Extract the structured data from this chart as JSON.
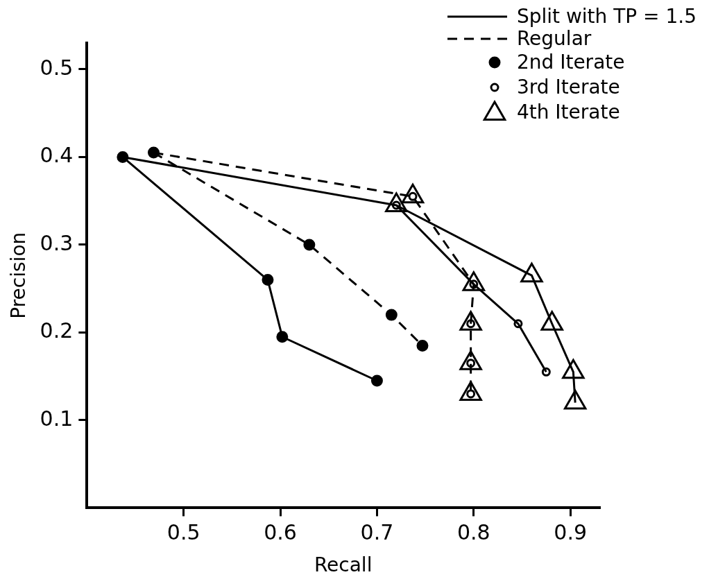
{
  "chart_data": {
    "type": "line",
    "xlabel": "Recall",
    "ylabel": "Precision",
    "xlim": [
      0.4,
      0.93
    ],
    "xticks": [
      0.5,
      0.6,
      0.7,
      0.8,
      0.9
    ],
    "ylim": [
      0,
      0.53
    ],
    "yticks": [
      0.1,
      0.2,
      0.3,
      0.4,
      0.5
    ],
    "grid": false,
    "legend": "top right",
    "series": [
      {
        "name": "Split with TP = 1.5",
        "color": "#000000",
        "line_style": "solid",
        "marker": "none",
        "x": [
          0.437,
          0.587,
          0.602,
          0.7
        ],
        "values": [
          0.4,
          0.26,
          0.195,
          0.145
        ]
      },
      {
        "name": "Regular",
        "color": "#000000",
        "line_style": "dashed",
        "marker": "none",
        "x": [
          0.469,
          0.63,
          0.715,
          0.747
        ],
        "values": [
          0.405,
          0.3,
          0.22,
          0.185
        ]
      },
      {
        "color": "#000000",
        "line_style": "solid",
        "marker": "none",
        "x": [
          0.437,
          0.72,
          0.8,
          0.846,
          0.875
        ],
        "values": [
          0.4,
          0.345,
          0.255,
          0.21,
          0.155
        ]
      },
      {
        "color": "#000000",
        "line_style": "solid",
        "marker": "none",
        "x": [
          0.72,
          0.86,
          0.881,
          0.903,
          0.905
        ],
        "values": [
          0.345,
          0.265,
          0.21,
          0.155,
          0.12
        ]
      },
      {
        "color": "#000000",
        "line_style": "dashed",
        "marker": "none",
        "x": [
          0.469,
          0.737,
          0.8,
          0.797,
          0.797,
          0.797
        ],
        "values": [
          0.405,
          0.355,
          0.255,
          0.21,
          0.165,
          0.13
        ]
      },
      {
        "type": "scatter",
        "name": "2nd Iterate",
        "color": "#000000",
        "marker": "circle",
        "x": [
          0.437,
          0.587,
          0.602,
          0.7,
          0.469,
          0.63,
          0.715,
          0.747
        ],
        "values": [
          0.4,
          0.26,
          0.195,
          0.145,
          0.405,
          0.3,
          0.22,
          0.185
        ]
      },
      {
        "type": "scatter",
        "name": "3rd Iterate",
        "color": "#000000",
        "marker": "circle",
        "x": [
          0.72,
          0.737,
          0.8,
          0.797,
          0.797,
          0.797,
          0.846,
          0.875
        ],
        "values": [
          0.345,
          0.355,
          0.255,
          0.21,
          0.165,
          0.13,
          0.21,
          0.155
        ]
      },
      {
        "type": "scatter",
        "name": "4th Iterate",
        "color": "#000000",
        "marker": "triangle",
        "x": [
          0.72,
          0.737,
          0.8,
          0.797,
          0.797,
          0.797,
          0.86,
          0.881,
          0.903,
          0.905
        ],
        "values": [
          0.345,
          0.355,
          0.255,
          0.21,
          0.165,
          0.13,
          0.265,
          0.21,
          0.155,
          0.12
        ]
      }
    ]
  }
}
